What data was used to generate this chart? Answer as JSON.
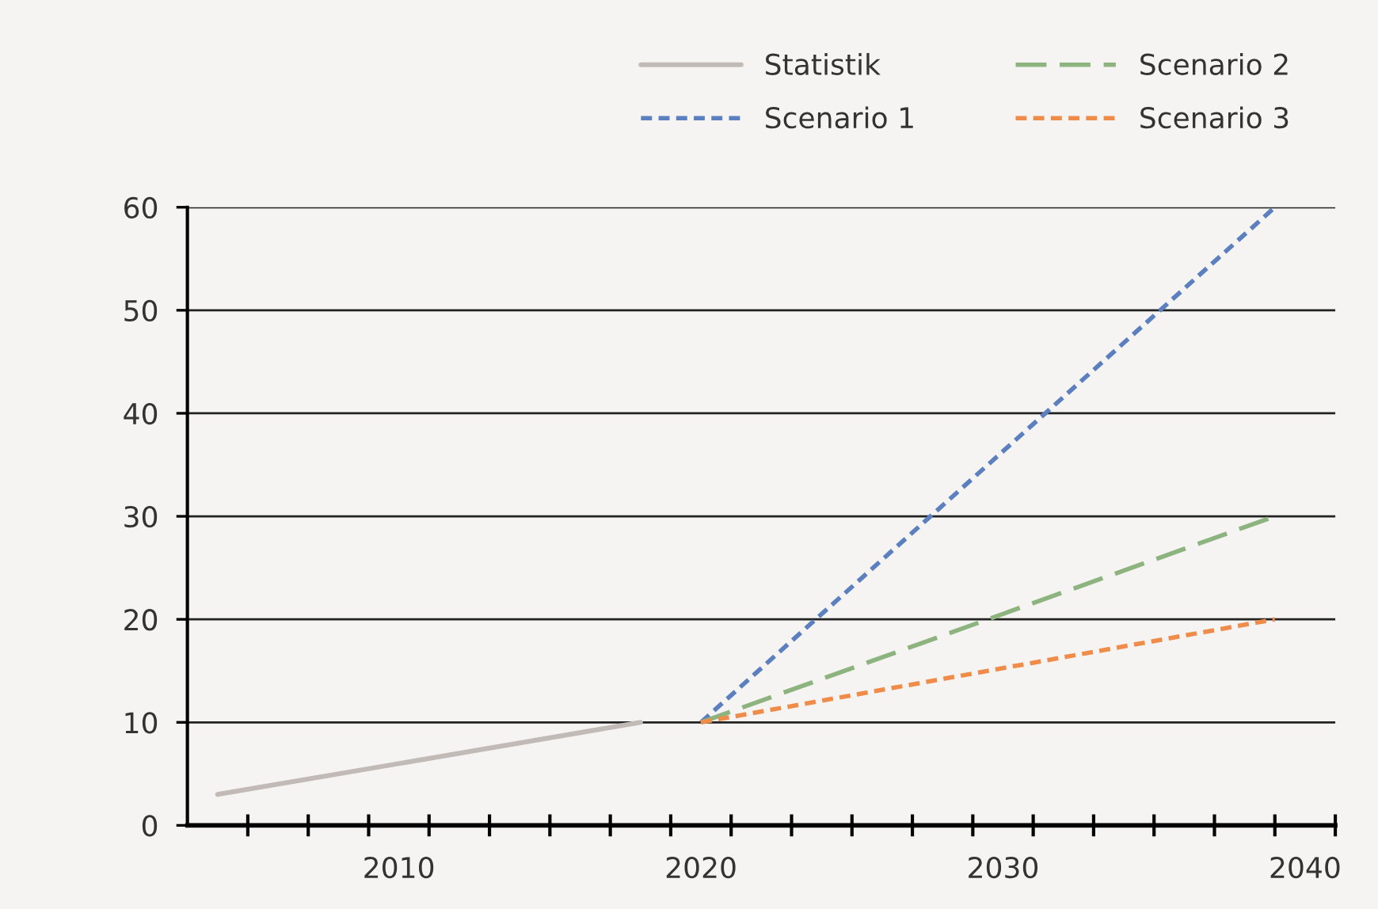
{
  "chart_data": {
    "type": "line",
    "series": [
      {
        "name": "Statistik",
        "color": "#c1bab7",
        "x": [
          2004,
          2018
        ],
        "values": [
          3,
          10
        ],
        "line_style": "solid"
      },
      {
        "name": "Scenario 1",
        "color": "#5b7fbf",
        "x": [
          2020,
          2039
        ],
        "values": [
          10,
          60
        ],
        "line_style": "dotted"
      },
      {
        "name": "Scenario 2",
        "color": "#8db37e",
        "x": [
          2020,
          2039
        ],
        "values": [
          10,
          30
        ],
        "line_style": "dashed"
      },
      {
        "name": "Scenario 3",
        "color": "#f08c4a",
        "x": [
          2020,
          2039
        ],
        "values": [
          10,
          20
        ],
        "line_style": "dotted"
      }
    ],
    "xlim": [
      2003,
      2041
    ],
    "xticks": [
      {
        "value": 2005,
        "label": null
      },
      {
        "value": 2007,
        "label": null
      },
      {
        "value": 2009,
        "label": null
      },
      {
        "value": 2010,
        "label": "2010"
      },
      {
        "value": 2011,
        "label": null
      },
      {
        "value": 2013,
        "label": null
      },
      {
        "value": 2015,
        "label": null
      },
      {
        "value": 2017,
        "label": null
      },
      {
        "value": 2019,
        "label": null
      },
      {
        "value": 2020,
        "label": "2020"
      },
      {
        "value": 2021,
        "label": null
      },
      {
        "value": 2023,
        "label": null
      },
      {
        "value": 2025,
        "label": null
      },
      {
        "value": 2027,
        "label": null
      },
      {
        "value": 2029,
        "label": null
      },
      {
        "value": 2030,
        "label": "2030"
      },
      {
        "value": 2031,
        "label": null
      },
      {
        "value": 2033,
        "label": null
      },
      {
        "value": 2035,
        "label": null
      },
      {
        "value": 2037,
        "label": null
      },
      {
        "value": 2039,
        "label": null
      },
      {
        "value": 2040,
        "label": "2040"
      },
      {
        "value": 2041,
        "label": null
      }
    ],
    "ylim": [
      0,
      60
    ],
    "yticks": [
      0,
      10,
      20,
      30,
      40,
      50,
      60
    ],
    "grid": "y",
    "legend": "top right",
    "marker": "none"
  }
}
